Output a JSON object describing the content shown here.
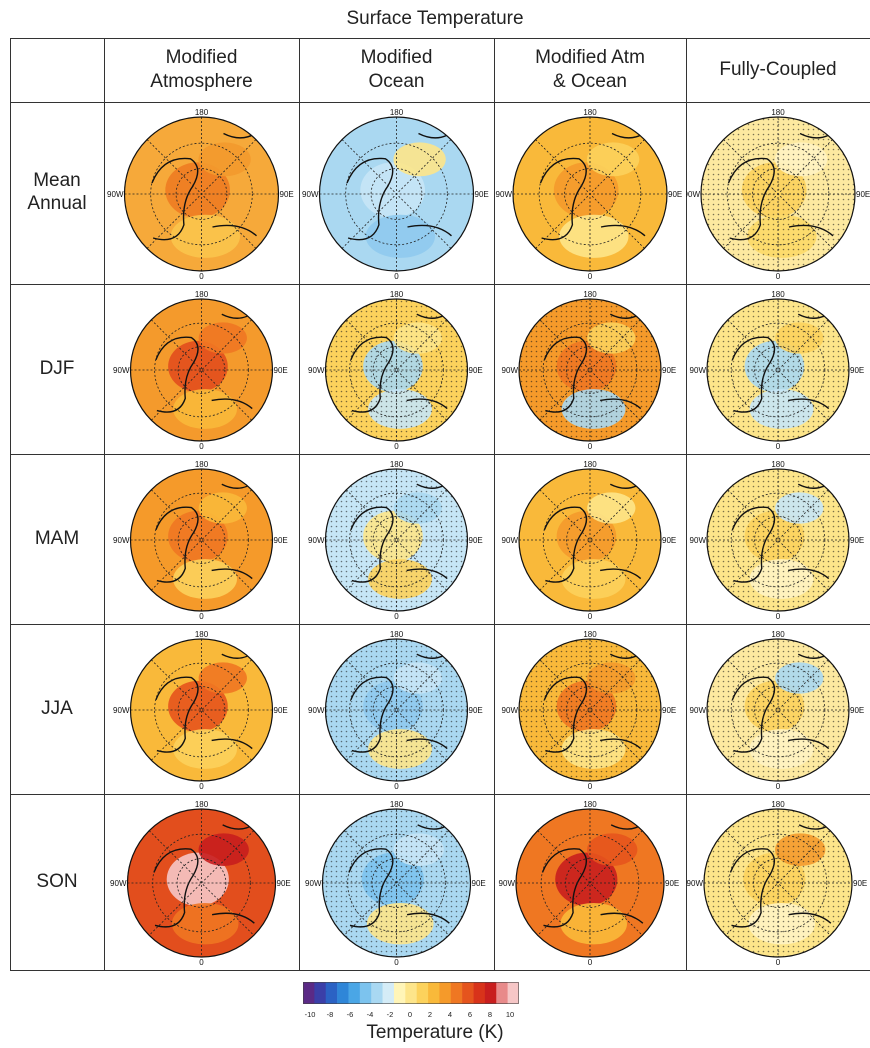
{
  "figure": {
    "title": "Surface Temperature",
    "columns": [
      "Modified\nAtmosphere",
      "Modified\nOcean",
      "Modified Atm\n& Ocean",
      "Fully-Coupled"
    ],
    "rows": [
      "Mean\nAnnual",
      "DJF",
      "MAM",
      "JJA",
      "SON"
    ],
    "map_labels": {
      "top": "180",
      "bottom": "0",
      "left": "90W",
      "right": "90E"
    },
    "colorbar": {
      "label": "Temperature (K)",
      "tick_labels": [
        "-10",
        "-8",
        "-6",
        "-4",
        "-2",
        "0",
        "2",
        "4",
        "6",
        "8",
        "10"
      ],
      "colors": [
        "#5b2a86",
        "#3b3fa8",
        "#2b62c4",
        "#2f86d8",
        "#4aa6e6",
        "#7cc3ee",
        "#a9d8f2",
        "#d4ecf7",
        "#fff5b8",
        "#fde58a",
        "#fcd25c",
        "#f9b93a",
        "#f59a2a",
        "#ef7722",
        "#e5541d",
        "#d8331a",
        "#c81e1e",
        "#e88a8a",
        "#f6c6c6"
      ]
    },
    "panels": [
      [
        {
          "bg": "#f6a93a",
          "patches": [
            {
              "c": "#ee7b22"
            },
            {
              "c": "#f3992e"
            },
            {
              "c": "#fbc44c"
            }
          ],
          "stipple": false
        },
        {
          "bg": "#aad8f1",
          "patches": [
            {
              "c": "#c6e6f6"
            },
            {
              "c": "#fde58a"
            },
            {
              "c": "#8fcaee"
            }
          ],
          "stipple": false
        },
        {
          "bg": "#f9b93a",
          "patches": [
            {
              "c": "#f49a2c"
            },
            {
              "c": "#fcd25c"
            },
            {
              "c": "#fde58a"
            }
          ],
          "stipple": false
        },
        {
          "bg": "#fde9a0",
          "patches": [
            {
              "c": "#fcd25c"
            },
            {
              "c": "#fff3c2"
            },
            {
              "c": "#fcd967"
            }
          ],
          "stipple": true
        }
      ],
      [
        {
          "bg": "#f49a2c",
          "patches": [
            {
              "c": "#e24e1d"
            },
            {
              "c": "#ef7722"
            },
            {
              "c": "#f9b93a"
            }
          ],
          "stipple": false
        },
        {
          "bg": "#fcd25c",
          "patches": [
            {
              "c": "#aad8f1"
            },
            {
              "c": "#fde58a"
            },
            {
              "c": "#c6e6f6"
            }
          ],
          "stipple": true
        },
        {
          "bg": "#f59a2a",
          "patches": [
            {
              "c": "#ef7722"
            },
            {
              "c": "#fcd25c"
            },
            {
              "c": "#aad8f1"
            }
          ],
          "stipple": true
        },
        {
          "bg": "#fde58a",
          "patches": [
            {
              "c": "#aad8f1"
            },
            {
              "c": "#fcd25c"
            },
            {
              "c": "#c6e6f6"
            }
          ],
          "stipple": true
        }
      ],
      [
        {
          "bg": "#f59a2a",
          "patches": [
            {
              "c": "#ef7722"
            },
            {
              "c": "#f9b93a"
            },
            {
              "c": "#fcd25c"
            }
          ],
          "stipple": false
        },
        {
          "bg": "#c6e6f6",
          "patches": [
            {
              "c": "#fde58a"
            },
            {
              "c": "#aad8f1"
            },
            {
              "c": "#fcd25c"
            }
          ],
          "stipple": true
        },
        {
          "bg": "#f9b93a",
          "patches": [
            {
              "c": "#f49a2c"
            },
            {
              "c": "#fde58a"
            },
            {
              "c": "#fcd25c"
            }
          ],
          "stipple": false
        },
        {
          "bg": "#fde58a",
          "patches": [
            {
              "c": "#fcd25c"
            },
            {
              "c": "#c6e6f6"
            },
            {
              "c": "#fff3c2"
            }
          ],
          "stipple": true
        }
      ],
      [
        {
          "bg": "#f9b93a",
          "patches": [
            {
              "c": "#e5541d"
            },
            {
              "c": "#ef7722"
            },
            {
              "c": "#fcd25c"
            }
          ],
          "stipple": false
        },
        {
          "bg": "#aad8f1",
          "patches": [
            {
              "c": "#8fcaee"
            },
            {
              "c": "#c6e6f6"
            },
            {
              "c": "#fde58a"
            }
          ],
          "stipple": true
        },
        {
          "bg": "#f9b93a",
          "patches": [
            {
              "c": "#ef7722"
            },
            {
              "c": "#f49a2c"
            },
            {
              "c": "#fde58a"
            }
          ],
          "stipple": true
        },
        {
          "bg": "#fde9a0",
          "patches": [
            {
              "c": "#fcd25c"
            },
            {
              "c": "#aad8f1"
            },
            {
              "c": "#fff3c2"
            }
          ],
          "stipple": true
        }
      ],
      [
        {
          "bg": "#e24e1d",
          "patches": [
            {
              "c": "#f6c6c6"
            },
            {
              "c": "#c81e1e"
            },
            {
              "c": "#ef7722"
            }
          ],
          "stipple": false
        },
        {
          "bg": "#aad8f1",
          "patches": [
            {
              "c": "#7cc3ee"
            },
            {
              "c": "#c6e6f6"
            },
            {
              "c": "#fde58a"
            }
          ],
          "stipple": true
        },
        {
          "bg": "#ef7722",
          "patches": [
            {
              "c": "#c81e1e"
            },
            {
              "c": "#e5541d"
            },
            {
              "c": "#f9b93a"
            }
          ],
          "stipple": false
        },
        {
          "bg": "#fde58a",
          "patches": [
            {
              "c": "#fcd25c"
            },
            {
              "c": "#f49a2c"
            },
            {
              "c": "#fff3c2"
            }
          ],
          "stipple": true
        }
      ]
    ]
  }
}
